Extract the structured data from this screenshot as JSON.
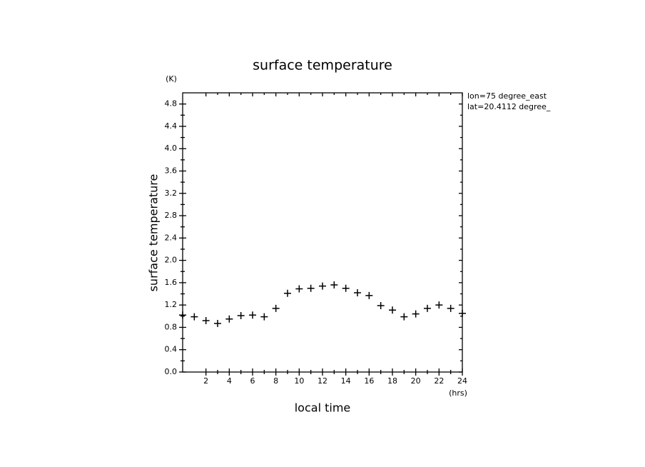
{
  "chart_data": {
    "type": "scatter",
    "title": "surface temperature",
    "xlabel": "local time",
    "ylabel": "surface temperature",
    "xunit": "(hrs)",
    "yunit": "(K)",
    "annotations": [
      "lon=75 degree_east",
      "lat=20.4112 degree_"
    ],
    "x": [
      0,
      1,
      2,
      3,
      4,
      5,
      6,
      7,
      8,
      9,
      10,
      11,
      12,
      13,
      14,
      15,
      16,
      17,
      18,
      19,
      20,
      21,
      22,
      23,
      24
    ],
    "values": [
      1.02,
      0.99,
      0.92,
      0.87,
      0.95,
      1.01,
      1.02,
      0.99,
      1.14,
      1.41,
      1.49,
      1.5,
      1.54,
      1.56,
      1.5,
      1.42,
      1.37,
      1.19,
      1.11,
      0.99,
      1.04,
      1.14,
      1.2,
      1.14,
      1.05
    ],
    "color": "#000000",
    "marker": "+",
    "xlim": [
      0,
      24
    ],
    "xticks": [
      2,
      4,
      6,
      8,
      10,
      12,
      14,
      16,
      18,
      20,
      22,
      24
    ],
    "ylim": [
      0,
      5
    ],
    "yticks": [
      {
        "value": 0,
        "label": "0.0"
      },
      0.4,
      0.8,
      1.2,
      1.6,
      {
        "value": 2,
        "label": "2.0"
      },
      2.4,
      2.8,
      3.2,
      3.6,
      {
        "value": 4,
        "label": "4.0"
      },
      4.4,
      4.8
    ],
    "grid": false
  }
}
